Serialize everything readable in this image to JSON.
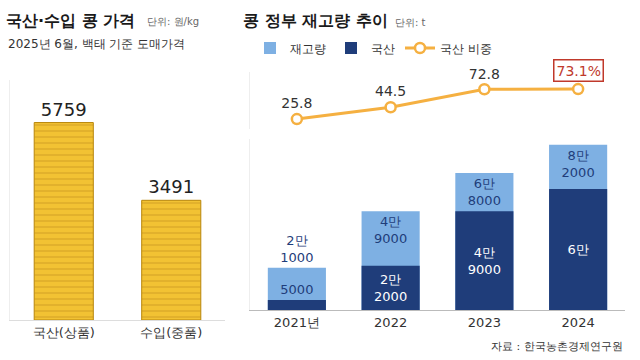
{
  "chart_data": [
    {
      "type": "bar",
      "title": "국산·수입 콩 가격",
      "subtitle": "2025년 6월, 백태 기준 도매가격",
      "annotations": [
        "단위: 원/kg"
      ],
      "categories": [
        "국산(상품)",
        "수입(중품)"
      ],
      "values": [
        5759,
        3491
      ],
      "color": "#f2c233",
      "ylim": [
        0,
        7000
      ],
      "data_labels": true,
      "tick_labels": "x"
    },
    {
      "type": "bar",
      "title": "콩 정부 재고량 추이",
      "annotations": [
        "단위: t",
        "자료 : 한국농촌경제연구원"
      ],
      "categories": [
        "2021년",
        "2022",
        "2023",
        "2024"
      ],
      "series": [
        {
          "name": "재고량",
          "type": "bar",
          "color": "#7eb0e3",
          "values": [
            21000,
            49000,
            68000,
            82000
          ],
          "value_labels": [
            "2만 1000",
            "4만 9000",
            "6만 8000",
            "8만 2000"
          ]
        },
        {
          "name": "국산",
          "type": "bar",
          "color": "#1f3d7a",
          "values": [
            5000,
            22000,
            49000,
            60000
          ],
          "value_labels": [
            "5000",
            "2만 2000",
            "4만 9000",
            "6만"
          ]
        },
        {
          "name": "국산 비중",
          "type": "line",
          "axis": "y2",
          "color": "#f5b041",
          "marker": "circle",
          "values": [
            25.8,
            44.5,
            72.8,
            73.1
          ],
          "value_labels": [
            "25.8",
            "44.5",
            "72.8",
            "73.1%"
          ]
        }
      ],
      "ylim": [
        0,
        85000
      ],
      "y2lim": [
        10,
        100
      ],
      "stacked": false,
      "legend": "top",
      "data_labels": true,
      "tick_labels": "x"
    }
  ]
}
